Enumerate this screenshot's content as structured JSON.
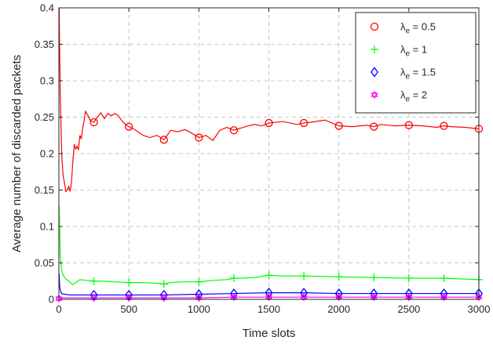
{
  "chart_data": {
    "type": "line",
    "title": "",
    "xlabel": "Time slots",
    "ylabel": "Average number of discarded packets",
    "xlim": [
      0,
      3000
    ],
    "ylim": [
      0,
      0.4
    ],
    "xticks": [
      0,
      500,
      1000,
      1500,
      2000,
      2500,
      3000
    ],
    "xtick_labels": [
      "0",
      "500",
      "1000",
      "1500",
      "2000",
      "2500",
      "3000"
    ],
    "yticks": [
      0,
      0.05,
      0.1,
      0.15,
      0.2,
      0.25,
      0.3,
      0.35,
      0.4
    ],
    "ytick_labels": [
      "0",
      "0.05",
      "0.1",
      "0.15",
      "0.2",
      "0.25",
      "0.3",
      "0.35",
      "0.4"
    ],
    "grid": true,
    "grid_style": "dashed",
    "legend_position": "top-right",
    "series": [
      {
        "name": "λe = 0.5",
        "legend_base": "λ",
        "legend_sub": "e",
        "legend_rest": " = 0.5",
        "color": "#ff0000",
        "marker": "circle",
        "x": [
          2,
          5,
          10,
          20,
          30,
          40,
          50,
          60,
          70,
          80,
          90,
          100,
          110,
          120,
          130,
          140,
          150,
          160,
          170,
          180,
          190,
          200,
          225,
          250,
          275,
          300,
          325,
          350,
          375,
          400,
          425,
          450,
          475,
          500,
          550,
          600,
          650,
          700,
          750,
          800,
          850,
          900,
          950,
          1000,
          1050,
          1100,
          1150,
          1200,
          1250,
          1300,
          1350,
          1400,
          1450,
          1500,
          1600,
          1700,
          1750,
          1800,
          1900,
          2000,
          2100,
          2200,
          2250,
          2300,
          2400,
          2500,
          2600,
          2700,
          2750,
          2800,
          2900,
          3000
        ],
        "y": [
          0.4,
          0.35,
          0.28,
          0.2,
          0.17,
          0.16,
          0.148,
          0.15,
          0.155,
          0.148,
          0.16,
          0.19,
          0.213,
          0.206,
          0.21,
          0.205,
          0.225,
          0.22,
          0.235,
          0.245,
          0.258,
          0.255,
          0.245,
          0.243,
          0.25,
          0.256,
          0.248,
          0.255,
          0.252,
          0.255,
          0.252,
          0.245,
          0.24,
          0.237,
          0.232,
          0.225,
          0.222,
          0.225,
          0.219,
          0.232,
          0.23,
          0.233,
          0.228,
          0.222,
          0.225,
          0.218,
          0.232,
          0.236,
          0.232,
          0.235,
          0.238,
          0.24,
          0.238,
          0.242,
          0.244,
          0.24,
          0.242,
          0.243,
          0.246,
          0.238,
          0.237,
          0.239,
          0.237,
          0.24,
          0.238,
          0.239,
          0.238,
          0.236,
          0.238,
          0.237,
          0.236,
          0.234
        ],
        "marker_x": [
          250,
          500,
          750,
          1000,
          1250,
          1500,
          1750,
          2000,
          2250,
          2500,
          2750,
          3000
        ],
        "marker_y": [
          0.243,
          0.237,
          0.219,
          0.222,
          0.232,
          0.242,
          0.242,
          0.238,
          0.237,
          0.239,
          0.238,
          0.234
        ]
      },
      {
        "name": "λe = 1",
        "legend_base": "λ",
        "legend_sub": "e",
        "legend_rest": " = 1",
        "color": "#00ff00",
        "marker": "plus",
        "x": [
          2,
          5,
          10,
          20,
          30,
          50,
          70,
          100,
          150,
          200,
          250,
          300,
          400,
          500,
          600,
          700,
          750,
          800,
          900,
          1000,
          1100,
          1200,
          1250,
          1300,
          1400,
          1500,
          1600,
          1750,
          2000,
          2250,
          2500,
          2750,
          3000
        ],
        "y": [
          0.128,
          0.1,
          0.06,
          0.04,
          0.033,
          0.028,
          0.025,
          0.02,
          0.027,
          0.026,
          0.025,
          0.025,
          0.024,
          0.023,
          0.023,
          0.022,
          0.021,
          0.023,
          0.024,
          0.024,
          0.026,
          0.027,
          0.029,
          0.029,
          0.03,
          0.033,
          0.032,
          0.032,
          0.031,
          0.03,
          0.029,
          0.029,
          0.027
        ],
        "marker_x": [
          250,
          500,
          750,
          1000,
          1250,
          1500,
          1750,
          2000,
          2250,
          2500,
          2750,
          3000
        ],
        "marker_y": [
          0.025,
          0.023,
          0.021,
          0.024,
          0.029,
          0.033,
          0.032,
          0.031,
          0.03,
          0.029,
          0.029,
          0.027
        ]
      },
      {
        "name": "λe = 1.5",
        "legend_base": "λ",
        "legend_sub": "e",
        "legend_rest": " = 1.5",
        "color": "#0000ff",
        "marker": "diamond",
        "x": [
          2,
          5,
          10,
          20,
          40,
          80,
          150,
          250,
          500,
          750,
          1000,
          1250,
          1500,
          1750,
          2000,
          2250,
          2500,
          2750,
          3000
        ],
        "y": [
          0.035,
          0.02,
          0.012,
          0.008,
          0.007,
          0.006,
          0.006,
          0.006,
          0.006,
          0.006,
          0.007,
          0.008,
          0.009,
          0.009,
          0.008,
          0.008,
          0.008,
          0.008,
          0.008
        ],
        "marker_x": [
          250,
          500,
          750,
          1000,
          1250,
          1500,
          1750,
          2000,
          2250,
          2500,
          2750,
          3000
        ],
        "marker_y": [
          0.006,
          0.006,
          0.006,
          0.007,
          0.008,
          0.009,
          0.009,
          0.008,
          0.008,
          0.008,
          0.008,
          0.008
        ]
      },
      {
        "name": "λe = 2",
        "legend_base": "λ",
        "legend_sub": "e",
        "legend_rest": " = 2",
        "color": "#ff00ff",
        "marker": "hexagram",
        "x": [
          2,
          5,
          10,
          30,
          80,
          250,
          500,
          750,
          1000,
          1250,
          1500,
          1750,
          2000,
          2250,
          2500,
          2750,
          3000
        ],
        "y": [
          0.004,
          0.003,
          0.002,
          0.002,
          0.002,
          0.002,
          0.002,
          0.002,
          0.002,
          0.003,
          0.003,
          0.003,
          0.003,
          0.003,
          0.003,
          0.003,
          0.003
        ],
        "marker_x": [
          0,
          250,
          500,
          750,
          1000,
          1250,
          1500,
          1750,
          2000,
          2250,
          2500,
          2750,
          3000
        ],
        "marker_y": [
          0.001,
          0.002,
          0.002,
          0.002,
          0.002,
          0.003,
          0.003,
          0.003,
          0.003,
          0.003,
          0.003,
          0.003,
          0.003
        ]
      }
    ]
  }
}
